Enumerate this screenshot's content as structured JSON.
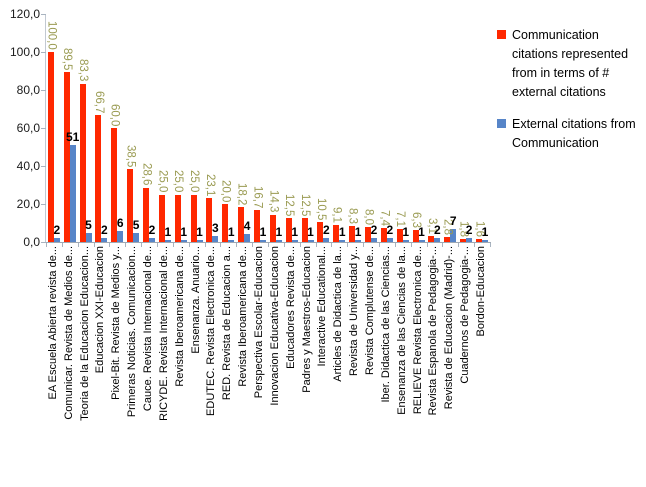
{
  "chart_data": {
    "type": "bar",
    "title": "",
    "xlabel": "",
    "ylabel": "",
    "ylim": [
      0,
      120
    ],
    "y_ticks": [
      "120,0",
      "100,0",
      "80,0",
      "60,0",
      "40,0",
      "20,0",
      "0,0"
    ],
    "grid": false,
    "legend_position": "right",
    "categories": [
      "EA Escuela Abierta revista de...",
      "Comunicar. Revista de Medios de...",
      "Teoria de la Educacion Educacion...",
      "Educacion XXI-Educacion",
      "Pixel-Bit. Revista de Medios y...",
      "Primeras Noticias. Comunicacion...",
      "Cauce. Revista Internacional de...",
      "RICYDE. Revista Internacional de...",
      "Revista Iberoamericana de...",
      "Ensenanza. Anuario...",
      "EDUTEC. Revista Electronica de...",
      "RED. Revista de Educacion a...",
      "Revista Iberoamericana de...",
      "Perspectiva Escolar-Educacion",
      "Innovacion Educativa-Educacion",
      "Educadores Revista de...",
      "Padres y Maestros-Educacion",
      "Interactive Educational...",
      "Articles de Didactica de la...",
      "Revista de Universidad y...",
      "Revista Complutense de...",
      "Iber. Didactica de las Ciencias...",
      "Ensenanza de las Ciencias de la...",
      "RELIEVE Revista Electronica de...",
      "Revista Espanola de Pedagogia-...",
      "Revista de Educacion (Madrid)-...",
      "Cuadernos de Pedagogia-...",
      "Bordon-Educacion"
    ],
    "series": [
      {
        "name": "Communication citations represented from in terms of # external citations",
        "color": "#FF2800",
        "label_color": "#9A9B52",
        "values": [
          100.0,
          89.5,
          83.3,
          66.7,
          60.0,
          38.5,
          28.6,
          25.0,
          25.0,
          25.0,
          23.1,
          20.0,
          18.2,
          16.7,
          14.3,
          12.5,
          12.5,
          10.5,
          9.1,
          8.3,
          8.0,
          7.4,
          7.1,
          6.3,
          3.1,
          2.8,
          1.8,
          1.6
        ],
        "labels": [
          "100,0",
          "89,5",
          "83,3",
          "66,7",
          "60,0",
          "38,5",
          "28,6",
          "25,0",
          "25,0",
          "25,0",
          "23,1",
          "20,0",
          "18,2",
          "16,7",
          "14,3",
          "12,5",
          "12,5",
          "10,5",
          "9,1",
          "8,3",
          "8,0",
          "7,4",
          "7,1",
          "6,3",
          "3,1",
          "2,8",
          "1,8",
          "1,6"
        ]
      },
      {
        "name": "External citations from Communication",
        "color": "#5785C8",
        "label_color": "#000000",
        "values": [
          2,
          51,
          5,
          2,
          6,
          5,
          2,
          1,
          1,
          1,
          3,
          1,
          4,
          1,
          1,
          1,
          1,
          2,
          1,
          1,
          2,
          2,
          1,
          1,
          2,
          7,
          2,
          1
        ],
        "labels": [
          "2",
          "51",
          "5",
          "2",
          "6",
          "5",
          "2",
          "1",
          "1",
          "1",
          "3",
          "1",
          "4",
          "1",
          "1",
          "1",
          "1",
          "2",
          "1",
          "1",
          "2",
          "2",
          "1",
          "1",
          "2",
          "7",
          "2",
          "1"
        ]
      }
    ]
  }
}
